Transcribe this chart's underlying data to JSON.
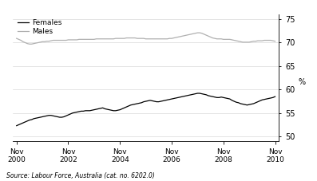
{
  "title": "",
  "ylabel": "%",
  "source_text": "Source: Labour Force, Australia (cat. no. 6202.0)",
  "legend_females": "Females",
  "legend_males": "Males",
  "females_color": "#000000",
  "males_color": "#b0b0b0",
  "ylim": [
    49,
    76
  ],
  "yticks": [
    50,
    55,
    60,
    65,
    70,
    75
  ],
  "xtick_years": [
    2000,
    2002,
    2004,
    2006,
    2008,
    2010
  ],
  "females_data": [
    52.3,
    52.5,
    52.7,
    52.9,
    53.1,
    53.3,
    53.5,
    53.6,
    53.8,
    53.9,
    54.0,
    54.1,
    54.2,
    54.3,
    54.4,
    54.5,
    54.5,
    54.4,
    54.3,
    54.2,
    54.1,
    54.1,
    54.2,
    54.4,
    54.6,
    54.8,
    55.0,
    55.1,
    55.2,
    55.3,
    55.4,
    55.4,
    55.5,
    55.5,
    55.5,
    55.6,
    55.7,
    55.8,
    55.9,
    56.0,
    56.1,
    55.9,
    55.8,
    55.7,
    55.6,
    55.5,
    55.5,
    55.6,
    55.7,
    55.9,
    56.1,
    56.3,
    56.5,
    56.7,
    56.8,
    56.9,
    57.0,
    57.1,
    57.2,
    57.4,
    57.5,
    57.6,
    57.7,
    57.6,
    57.5,
    57.4,
    57.4,
    57.5,
    57.6,
    57.7,
    57.8,
    57.9,
    58.0,
    58.1,
    58.2,
    58.3,
    58.4,
    58.5,
    58.6,
    58.7,
    58.8,
    58.9,
    59.0,
    59.1,
    59.2,
    59.2,
    59.1,
    59.0,
    58.9,
    58.7,
    58.6,
    58.5,
    58.4,
    58.3,
    58.3,
    58.4,
    58.3,
    58.2,
    58.1,
    58.0,
    57.7,
    57.5,
    57.3,
    57.2,
    57.0,
    56.9,
    56.8,
    56.7,
    56.8,
    56.9,
    57.0,
    57.2,
    57.4,
    57.6,
    57.8,
    57.9,
    58.0,
    58.1,
    58.2,
    58.3,
    58.5
  ],
  "males_data": [
    70.9,
    70.7,
    70.5,
    70.2,
    70.0,
    69.8,
    69.7,
    69.7,
    69.8,
    69.9,
    70.0,
    70.1,
    70.2,
    70.2,
    70.3,
    70.3,
    70.4,
    70.5,
    70.5,
    70.5,
    70.5,
    70.5,
    70.5,
    70.5,
    70.6,
    70.6,
    70.6,
    70.6,
    70.6,
    70.7,
    70.7,
    70.7,
    70.7,
    70.7,
    70.7,
    70.7,
    70.7,
    70.8,
    70.8,
    70.8,
    70.8,
    70.8,
    70.8,
    70.8,
    70.8,
    70.8,
    70.9,
    70.9,
    70.9,
    70.9,
    70.9,
    71.0,
    71.0,
    71.0,
    71.0,
    71.0,
    70.9,
    70.9,
    70.9,
    70.9,
    70.8,
    70.8,
    70.8,
    70.8,
    70.8,
    70.8,
    70.8,
    70.8,
    70.8,
    70.8,
    70.8,
    70.9,
    70.9,
    71.0,
    71.1,
    71.2,
    71.3,
    71.4,
    71.5,
    71.6,
    71.7,
    71.8,
    71.9,
    72.0,
    72.1,
    72.1,
    72.0,
    71.8,
    71.6,
    71.4,
    71.2,
    71.0,
    70.9,
    70.8,
    70.8,
    70.8,
    70.7,
    70.7,
    70.7,
    70.7,
    70.6,
    70.5,
    70.4,
    70.3,
    70.2,
    70.1,
    70.1,
    70.1,
    70.1,
    70.2,
    70.3,
    70.3,
    70.4,
    70.4,
    70.4,
    70.5,
    70.5,
    70.5,
    70.5,
    70.4,
    70.3
  ]
}
